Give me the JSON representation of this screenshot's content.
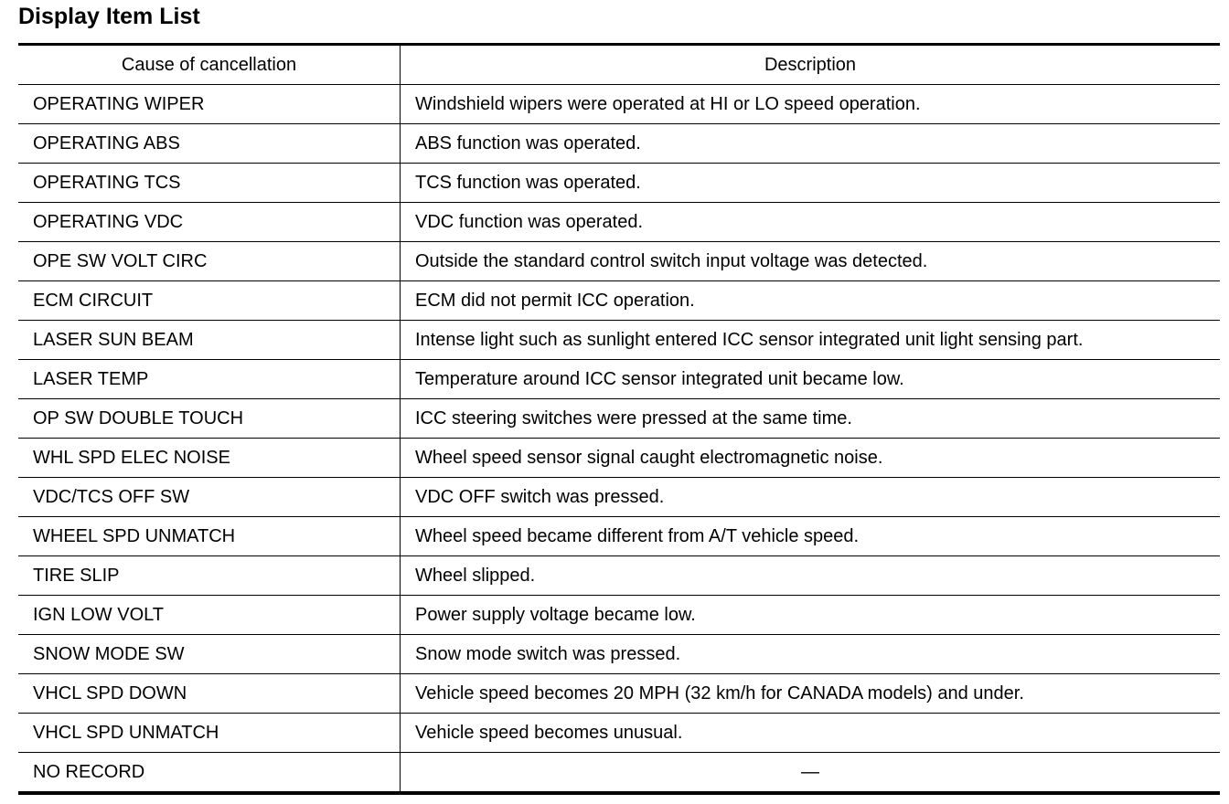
{
  "title": "Display Item List",
  "table": {
    "headers": [
      "Cause of cancellation",
      "Description"
    ],
    "rows": [
      {
        "cause": "OPERATING WIPER",
        "description": "Windshield wipers were operated at HI or LO speed operation."
      },
      {
        "cause": "OPERATING ABS",
        "description": "ABS function was operated."
      },
      {
        "cause": "OPERATING TCS",
        "description": "TCS function was operated."
      },
      {
        "cause": "OPERATING VDC",
        "description": "VDC function was operated."
      },
      {
        "cause": "OPE SW VOLT CIRC",
        "description": "Outside the standard control switch input voltage was detected."
      },
      {
        "cause": "ECM CIRCUIT",
        "description": "ECM did not permit ICC operation."
      },
      {
        "cause": "LASER SUN BEAM",
        "description": "Intense light such as sunlight entered ICC sensor integrated unit light sensing part."
      },
      {
        "cause": "LASER TEMP",
        "description": "Temperature around ICC sensor integrated unit became low."
      },
      {
        "cause": "OP SW DOUBLE TOUCH",
        "description": "ICC steering switches were pressed at the same time."
      },
      {
        "cause": "WHL SPD ELEC NOISE",
        "description": "Wheel speed sensor signal caught electromagnetic noise."
      },
      {
        "cause": "VDC/TCS OFF SW",
        "description": "VDC OFF switch was pressed."
      },
      {
        "cause": "WHEEL SPD UNMATCH",
        "description": "Wheel speed became different from A/T vehicle speed."
      },
      {
        "cause": "TIRE SLIP",
        "description": "Wheel slipped."
      },
      {
        "cause": "IGN LOW VOLT",
        "description": "Power supply voltage became low."
      },
      {
        "cause": "SNOW MODE SW",
        "description": "Snow mode switch was pressed."
      },
      {
        "cause": "VHCL SPD DOWN",
        "description": "Vehicle speed becomes 20 MPH (32 km/h for CANADA models) and under."
      },
      {
        "cause": "VHCL SPD UNMATCH",
        "description": "Vehicle speed becomes unusual."
      },
      {
        "cause": "NO RECORD",
        "description": "—"
      }
    ]
  }
}
